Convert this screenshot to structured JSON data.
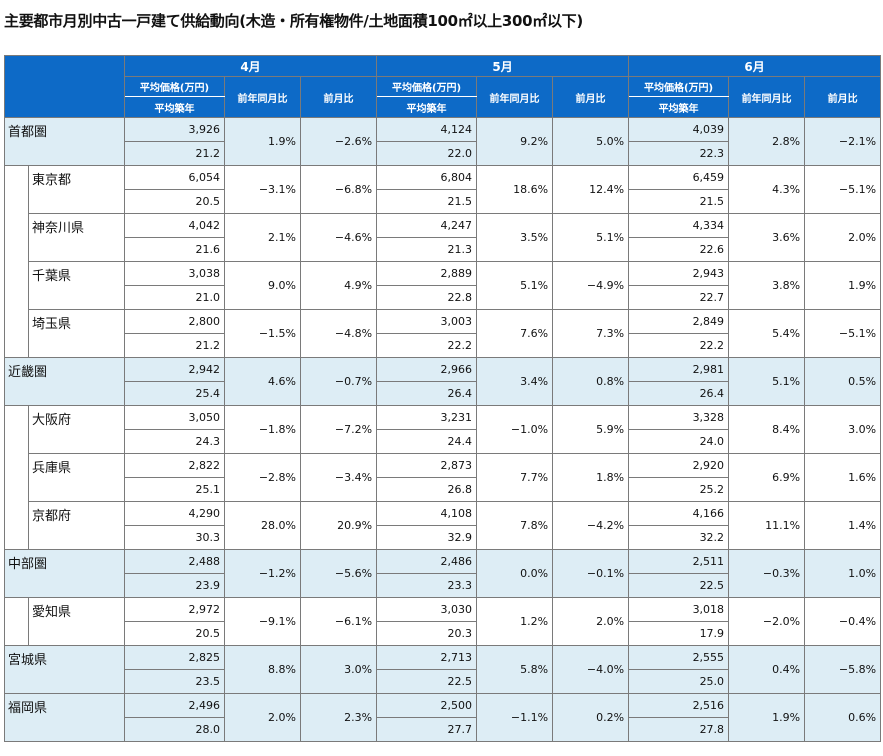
{
  "title": "主要都市月別中古一戸建て供給動向(木造・所有権物件/土地面積100㎡以上300㎡以下)",
  "header": {
    "months": [
      "4月",
      "5月",
      "6月"
    ],
    "price_label": "平均価格(万円)",
    "age_label": "平均築年",
    "yoy_label": "前年同月比",
    "mom_label": "前月比"
  },
  "rows": [
    {
      "name": "首都圏",
      "region": true,
      "m": [
        {
          "price": "3,926",
          "age": "21.2",
          "yoy": "1.9%",
          "mom": "−2.6%"
        },
        {
          "price": "4,124",
          "age": "22.0",
          "yoy": "9.2%",
          "mom": "5.0%"
        },
        {
          "price": "4,039",
          "age": "22.3",
          "yoy": "2.8%",
          "mom": "−2.1%"
        }
      ]
    },
    {
      "name": "東京都",
      "region": false,
      "m": [
        {
          "price": "6,054",
          "age": "20.5",
          "yoy": "−3.1%",
          "mom": "−6.8%"
        },
        {
          "price": "6,804",
          "age": "21.5",
          "yoy": "18.6%",
          "mom": "12.4%"
        },
        {
          "price": "6,459",
          "age": "21.5",
          "yoy": "4.3%",
          "mom": "−5.1%"
        }
      ]
    },
    {
      "name": "神奈川県",
      "region": false,
      "m": [
        {
          "price": "4,042",
          "age": "21.6",
          "yoy": "2.1%",
          "mom": "−4.6%"
        },
        {
          "price": "4,247",
          "age": "21.3",
          "yoy": "3.5%",
          "mom": "5.1%"
        },
        {
          "price": "4,334",
          "age": "22.6",
          "yoy": "3.6%",
          "mom": "2.0%"
        }
      ]
    },
    {
      "name": "千葉県",
      "region": false,
      "m": [
        {
          "price": "3,038",
          "age": "21.0",
          "yoy": "9.0%",
          "mom": "4.9%"
        },
        {
          "price": "2,889",
          "age": "22.8",
          "yoy": "5.1%",
          "mom": "−4.9%"
        },
        {
          "price": "2,943",
          "age": "22.7",
          "yoy": "3.8%",
          "mom": "1.9%"
        }
      ]
    },
    {
      "name": "埼玉県",
      "region": false,
      "last": true,
      "m": [
        {
          "price": "2,800",
          "age": "21.2",
          "yoy": "−1.5%",
          "mom": "−4.8%"
        },
        {
          "price": "3,003",
          "age": "22.2",
          "yoy": "7.6%",
          "mom": "7.3%"
        },
        {
          "price": "2,849",
          "age": "22.2",
          "yoy": "5.4%",
          "mom": "−5.1%"
        }
      ]
    },
    {
      "name": "近畿圏",
      "region": true,
      "m": [
        {
          "price": "2,942",
          "age": "25.4",
          "yoy": "4.6%",
          "mom": "−0.7%"
        },
        {
          "price": "2,966",
          "age": "26.4",
          "yoy": "3.4%",
          "mom": "0.8%"
        },
        {
          "price": "2,981",
          "age": "26.4",
          "yoy": "5.1%",
          "mom": "0.5%"
        }
      ]
    },
    {
      "name": "大阪府",
      "region": false,
      "m": [
        {
          "price": "3,050",
          "age": "24.3",
          "yoy": "−1.8%",
          "mom": "−7.2%"
        },
        {
          "price": "3,231",
          "age": "24.4",
          "yoy": "−1.0%",
          "mom": "5.9%"
        },
        {
          "price": "3,328",
          "age": "24.0",
          "yoy": "8.4%",
          "mom": "3.0%"
        }
      ]
    },
    {
      "name": "兵庫県",
      "region": false,
      "m": [
        {
          "price": "2,822",
          "age": "25.1",
          "yoy": "−2.8%",
          "mom": "−3.4%"
        },
        {
          "price": "2,873",
          "age": "26.8",
          "yoy": "7.7%",
          "mom": "1.8%"
        },
        {
          "price": "2,920",
          "age": "25.2",
          "yoy": "6.9%",
          "mom": "1.6%"
        }
      ]
    },
    {
      "name": "京都府",
      "region": false,
      "last": true,
      "m": [
        {
          "price": "4,290",
          "age": "30.3",
          "yoy": "28.0%",
          "mom": "20.9%"
        },
        {
          "price": "4,108",
          "age": "32.9",
          "yoy": "7.8%",
          "mom": "−4.2%"
        },
        {
          "price": "4,166",
          "age": "32.2",
          "yoy": "11.1%",
          "mom": "1.4%"
        }
      ]
    },
    {
      "name": "中部圏",
      "region": true,
      "m": [
        {
          "price": "2,488",
          "age": "23.9",
          "yoy": "−1.2%",
          "mom": "−5.6%"
        },
        {
          "price": "2,486",
          "age": "23.3",
          "yoy": "0.0%",
          "mom": "−0.1%"
        },
        {
          "price": "2,511",
          "age": "22.5",
          "yoy": "−0.3%",
          "mom": "1.0%"
        }
      ]
    },
    {
      "name": "愛知県",
      "region": false,
      "last": true,
      "m": [
        {
          "price": "2,972",
          "age": "20.5",
          "yoy": "−9.1%",
          "mom": "−6.1%"
        },
        {
          "price": "3,030",
          "age": "20.3",
          "yoy": "1.2%",
          "mom": "2.0%"
        },
        {
          "price": "3,018",
          "age": "17.9",
          "yoy": "−2.0%",
          "mom": "−0.4%"
        }
      ]
    },
    {
      "name": "宮城県",
      "region": true,
      "m": [
        {
          "price": "2,825",
          "age": "23.5",
          "yoy": "8.8%",
          "mom": "3.0%"
        },
        {
          "price": "2,713",
          "age": "22.5",
          "yoy": "5.8%",
          "mom": "−4.0%"
        },
        {
          "price": "2,555",
          "age": "25.0",
          "yoy": "0.4%",
          "mom": "−5.8%"
        }
      ]
    },
    {
      "name": "福岡県",
      "region": true,
      "m": [
        {
          "price": "2,496",
          "age": "28.0",
          "yoy": "2.0%",
          "mom": "2.3%"
        },
        {
          "price": "2,500",
          "age": "27.7",
          "yoy": "−1.1%",
          "mom": "0.2%"
        },
        {
          "price": "2,516",
          "age": "27.8",
          "yoy": "1.9%",
          "mom": "0.6%"
        }
      ]
    }
  ]
}
